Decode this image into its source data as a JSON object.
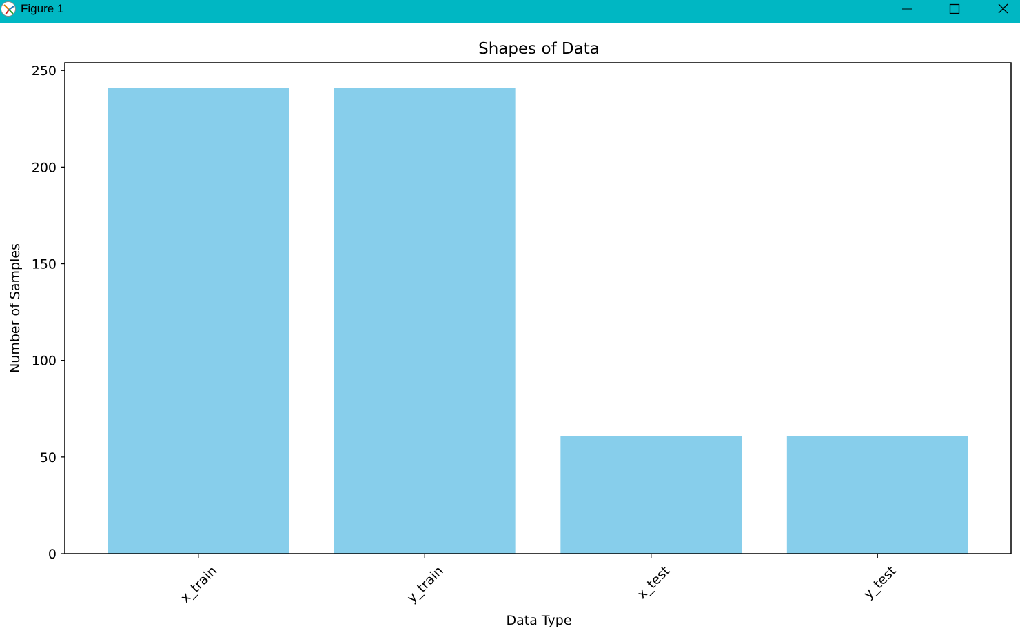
{
  "window": {
    "title": "Figure 1",
    "titlebar_color": "#00b7c3",
    "icons": [
      "app-icon",
      "minimize-icon",
      "maximize-icon",
      "close-icon"
    ]
  },
  "chart_data": {
    "type": "bar",
    "title": "Shapes of Data",
    "xlabel": "Data Type",
    "ylabel": "Number of Samples",
    "categories": [
      "x_train",
      "y_train",
      "x_test",
      "y_test"
    ],
    "values": [
      241,
      241,
      61,
      61
    ],
    "ylim": [
      0,
      254
    ],
    "yticks": [
      0,
      50,
      100,
      150,
      200,
      250
    ],
    "bar_color": "#87ceeb",
    "grid": false,
    "xtick_rotation": 45
  }
}
